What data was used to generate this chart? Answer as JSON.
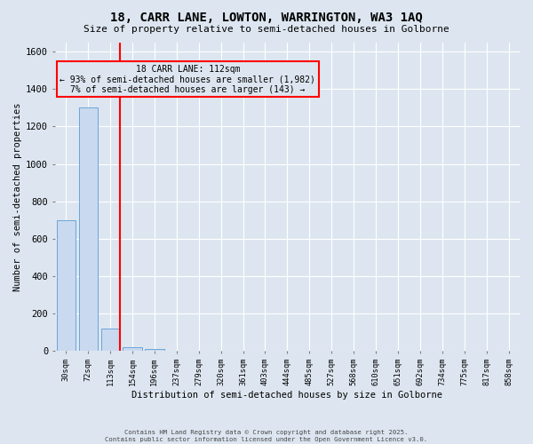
{
  "title": "18, CARR LANE, LOWTON, WARRINGTON, WA3 1AQ",
  "subtitle": "Size of property relative to semi-detached houses in Golborne",
  "xlabel": "Distribution of semi-detached houses by size in Golborne",
  "ylabel": "Number of semi-detached properties",
  "categories": [
    "30sqm",
    "72sqm",
    "113sqm",
    "154sqm",
    "196sqm",
    "237sqm",
    "279sqm",
    "320sqm",
    "361sqm",
    "403sqm",
    "444sqm",
    "485sqm",
    "527sqm",
    "568sqm",
    "610sqm",
    "651sqm",
    "692sqm",
    "734sqm",
    "775sqm",
    "817sqm",
    "858sqm"
  ],
  "values": [
    700,
    1300,
    120,
    20,
    10,
    0,
    0,
    0,
    0,
    0,
    0,
    0,
    0,
    0,
    0,
    0,
    0,
    0,
    0,
    0,
    0
  ],
  "bar_color": "#c9d9f0",
  "bar_edge_color": "#5b9bd5",
  "red_line_index": 2,
  "annotation_text": "18 CARR LANE: 112sqm\n← 93% of semi-detached houses are smaller (1,982)\n7% of semi-detached houses are larger (143) →",
  "annotation_box_color": "#ff0000",
  "ylim": [
    0,
    1650
  ],
  "yticks": [
    0,
    200,
    400,
    600,
    800,
    1000,
    1200,
    1400,
    1600
  ],
  "background_color": "#dde6f0",
  "grid_color": "#ffffff",
  "footer_line1": "Contains HM Land Registry data © Crown copyright and database right 2025.",
  "footer_line2": "Contains public sector information licensed under the Open Government Licence v3.0."
}
